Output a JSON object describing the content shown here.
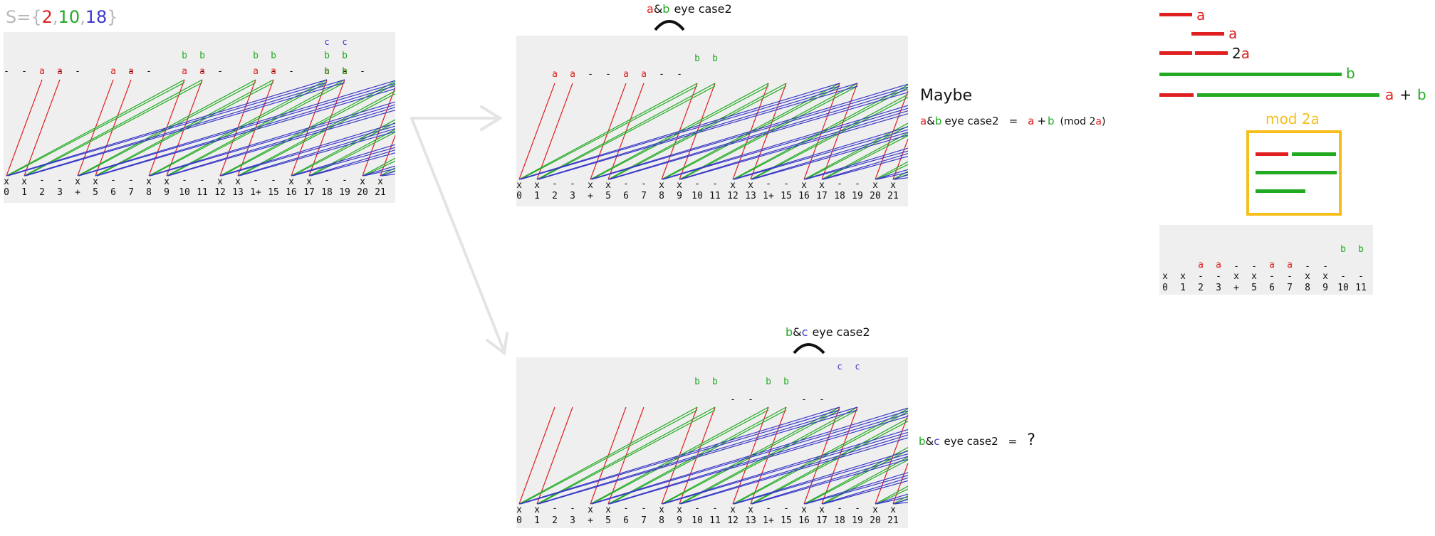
{
  "set_label": {
    "prefix": "S=",
    "open": "{",
    "values": [
      "2",
      "10",
      "18"
    ],
    "separators": [
      ",",
      ","
    ],
    "close": "}"
  },
  "colors": {
    "a": "#e02020",
    "b": "#22aa22",
    "c": "#3a3ac8",
    "panel_bg": "#efefef",
    "arrow": "#e4e4e4",
    "mod_box": "#f6bf1c"
  },
  "number_axis": [
    "0",
    "1",
    "2",
    "3",
    "+",
    "5",
    "6",
    "7",
    "8",
    "9",
    "10",
    "11",
    "12",
    "13",
    "1+",
    "15",
    "16",
    "17",
    "18",
    "19",
    "20",
    "21"
  ],
  "small_axis": [
    "0",
    "1",
    "2",
    "3",
    "+",
    "5",
    "6",
    "7",
    "8",
    "9",
    "10",
    "11"
  ],
  "panel_ab": {
    "title_a": "a",
    "title_amp": "&",
    "title_b": "b",
    "title_rest": "eye   case2"
  },
  "panel_bc": {
    "title_b": "b",
    "title_amp": "&",
    "title_c": "c",
    "title_rest": "eye   case2"
  },
  "maybe_label": "Maybe",
  "formula_ab": {
    "a": "a",
    "amp": "&",
    "b": "b",
    "rest": "eye   case2",
    "eq": "=",
    "rhs_a": "a",
    "plus": "+",
    "rhs_b": "b",
    "mod_open": "(mod 2",
    "mod_a": "a",
    "mod_close": ")"
  },
  "formula_bc": {
    "b": "b",
    "amp": "&",
    "c": "c",
    "rest": "eye   case2",
    "eq": "=",
    "unknown": "?"
  },
  "legend": {
    "row1": "a",
    "row2": "a",
    "row3_num": "2",
    "row3_a": "a",
    "row4": "b",
    "row5_a": "a",
    "row5_plus": "+",
    "row5_b": "b",
    "mod_title": "mod 2a"
  },
  "marks": {
    "a_glyph": "a",
    "b_glyph": "b",
    "c_glyph": "c",
    "x_glyph": "x",
    "dash_glyph": "-"
  }
}
